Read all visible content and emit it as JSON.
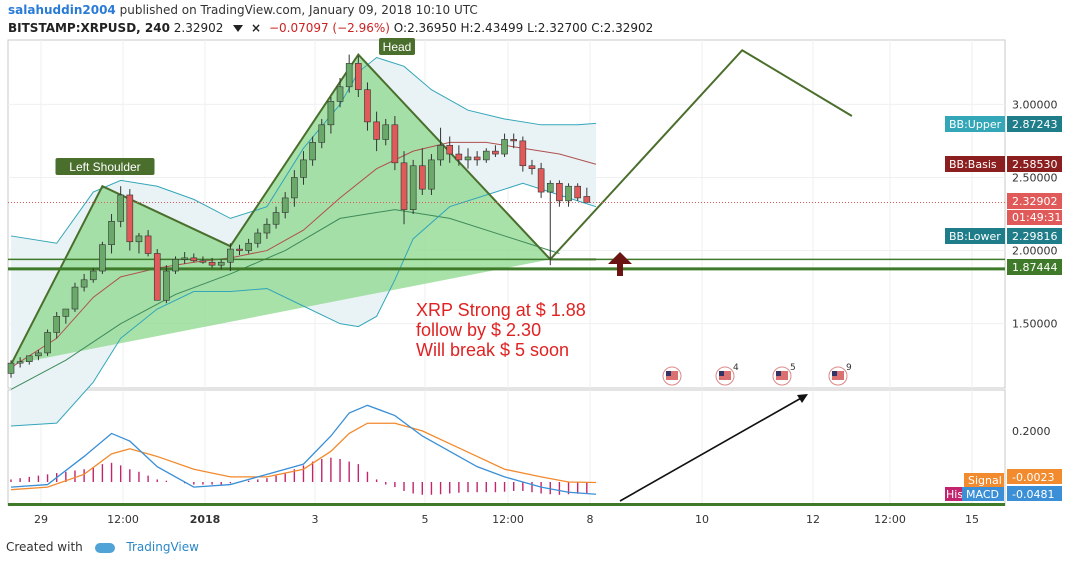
{
  "header": {
    "user": "salahuddin2004",
    "published": "published on TradingView.com, January 09, 2018 10:10 UTC",
    "symbol": "BITSTAMP:XRPUSD, 240",
    "last": "2.32902",
    "change": "−0.07097 (−2.96%)",
    "open_label": "O:",
    "open": "2.36950",
    "high_label": "H:",
    "high": "2.43499",
    "low_label": "L:",
    "low": "2.32700",
    "close_label": "C:",
    "close": "2.32902"
  },
  "footer": {
    "created_with": "Created with",
    "brand": "TradingView"
  },
  "colors": {
    "up": "#6aa96a",
    "down": "#e05a5a",
    "pattern_fill": "#8cd88c",
    "pattern_line": "#4a6e2c",
    "bb_fill": "#e9f3f5",
    "bb_band": "#33a6b8",
    "bb_basis": "#b05050",
    "ma": "#3e8a5a",
    "macd": "#3a8fd6",
    "signal": "#f28a2e",
    "hist": "#c2246e",
    "support": "#3f7a2a"
  },
  "chart_data": [
    {
      "type": "candlestick",
      "title": "BITSTAMP:XRPUSD, 240",
      "y_ticks": [
        "1.50000",
        "2.00000",
        "2.50000",
        "3.00000"
      ],
      "x_ticks": [
        "29",
        "12:00",
        "2018",
        "3",
        "5",
        "12:00",
        "8",
        "10",
        "12",
        "12:00",
        "15"
      ],
      "ylim": [
        1.06,
        3.44
      ],
      "x_range": [
        0,
        120
      ],
      "candles": [
        [
          1.16,
          1.25,
          1.13,
          1.23
        ],
        [
          1.23,
          1.27,
          1.2,
          1.24
        ],
        [
          1.24,
          1.28,
          1.22,
          1.28
        ],
        [
          1.28,
          1.32,
          1.25,
          1.3
        ],
        [
          1.3,
          1.46,
          1.28,
          1.44
        ],
        [
          1.44,
          1.58,
          1.4,
          1.55
        ],
        [
          1.55,
          1.6,
          1.5,
          1.6
        ],
        [
          1.6,
          1.78,
          1.58,
          1.75
        ],
        [
          1.75,
          1.84,
          1.72,
          1.8
        ],
        [
          1.8,
          1.88,
          1.78,
          1.86
        ],
        [
          1.86,
          2.06,
          1.84,
          2.04
        ],
        [
          2.04,
          2.25,
          1.98,
          2.2
        ],
        [
          2.2,
          2.44,
          2.16,
          2.38
        ],
        [
          2.38,
          2.42,
          2.0,
          2.06
        ],
        [
          2.06,
          2.12,
          1.98,
          2.1
        ],
        [
          2.1,
          2.14,
          1.96,
          1.98
        ],
        [
          1.98,
          2.01,
          1.66,
          1.66
        ],
        [
          1.66,
          1.9,
          1.64,
          1.86
        ],
        [
          1.86,
          1.96,
          1.84,
          1.94
        ],
        [
          1.94,
          1.99,
          1.91,
          1.95
        ],
        [
          1.95,
          1.98,
          1.92,
          1.93
        ],
        [
          1.93,
          1.96,
          1.91,
          1.92
        ],
        [
          1.92,
          1.95,
          1.88,
          1.9
        ],
        [
          1.9,
          1.94,
          1.87,
          1.92
        ],
        [
          1.92,
          2.05,
          1.86,
          2.01
        ],
        [
          2.01,
          2.04,
          1.97,
          2.0
        ],
        [
          2.0,
          2.08,
          1.98,
          2.05
        ],
        [
          2.05,
          2.15,
          2.02,
          2.12
        ],
        [
          2.12,
          2.22,
          2.08,
          2.18
        ],
        [
          2.18,
          2.3,
          2.15,
          2.26
        ],
        [
          2.26,
          2.4,
          2.22,
          2.36
        ],
        [
          2.36,
          2.55,
          2.3,
          2.5
        ],
        [
          2.5,
          2.68,
          2.45,
          2.62
        ],
        [
          2.62,
          2.78,
          2.58,
          2.74
        ],
        [
          2.74,
          2.9,
          2.7,
          2.86
        ],
        [
          2.86,
          3.05,
          2.8,
          3.02
        ],
        [
          3.02,
          3.18,
          2.98,
          3.12
        ],
        [
          3.12,
          3.34,
          3.08,
          3.28
        ],
        [
          3.28,
          3.33,
          3.05,
          3.1
        ],
        [
          3.1,
          3.15,
          2.82,
          2.88
        ],
        [
          2.88,
          2.95,
          2.68,
          2.76
        ],
        [
          2.76,
          2.9,
          2.72,
          2.86
        ],
        [
          2.86,
          2.92,
          2.55,
          2.6
        ],
        [
          2.6,
          2.68,
          2.18,
          2.28
        ],
        [
          2.28,
          2.62,
          2.25,
          2.58
        ],
        [
          2.58,
          2.7,
          2.38,
          2.42
        ],
        [
          2.42,
          2.66,
          2.38,
          2.62
        ],
        [
          2.62,
          2.84,
          2.58,
          2.72
        ],
        [
          2.72,
          2.78,
          2.6,
          2.66
        ],
        [
          2.66,
          2.72,
          2.58,
          2.62
        ],
        [
          2.62,
          2.7,
          2.56,
          2.64
        ],
        [
          2.64,
          2.68,
          2.58,
          2.62
        ],
        [
          2.62,
          2.7,
          2.6,
          2.68
        ],
        [
          2.68,
          2.72,
          2.64,
          2.66
        ],
        [
          2.66,
          2.8,
          2.64,
          2.76
        ],
        [
          2.76,
          2.8,
          2.7,
          2.75
        ],
        [
          2.75,
          2.78,
          2.54,
          2.58
        ],
        [
          2.58,
          2.62,
          2.52,
          2.56
        ],
        [
          2.56,
          2.6,
          2.36,
          2.4
        ],
        [
          2.4,
          2.48,
          1.9,
          2.46
        ],
        [
          2.46,
          2.48,
          2.3,
          2.34
        ],
        [
          2.34,
          2.46,
          2.3,
          2.44
        ],
        [
          2.44,
          2.46,
          2.34,
          2.36
        ],
        [
          2.37,
          2.43,
          2.33,
          2.33
        ]
      ],
      "bb_upper": [
        [
          0,
          2.1
        ],
        [
          5,
          2.05
        ],
        [
          9,
          2.4
        ],
        [
          12,
          2.48
        ],
        [
          16,
          2.44
        ],
        [
          20,
          2.35
        ],
        [
          24,
          2.22
        ],
        [
          28,
          2.3
        ],
        [
          32,
          2.7
        ],
        [
          36,
          3.0
        ],
        [
          38,
          3.22
        ],
        [
          40,
          3.32
        ],
        [
          43,
          3.26
        ],
        [
          46,
          3.1
        ],
        [
          50,
          2.96
        ],
        [
          54,
          2.9
        ],
        [
          58,
          2.86
        ],
        [
          62,
          2.86
        ],
        [
          64,
          2.87
        ]
      ],
      "bb_basis": [
        [
          0,
          1.2
        ],
        [
          5,
          1.4
        ],
        [
          9,
          1.68
        ],
        [
          12,
          1.82
        ],
        [
          16,
          1.88
        ],
        [
          20,
          1.92
        ],
        [
          24,
          1.95
        ],
        [
          28,
          2.0
        ],
        [
          32,
          2.14
        ],
        [
          36,
          2.36
        ],
        [
          40,
          2.56
        ],
        [
          44,
          2.68
        ],
        [
          48,
          2.74
        ],
        [
          52,
          2.74
        ],
        [
          56,
          2.7
        ],
        [
          60,
          2.66
        ],
        [
          64,
          2.59
        ]
      ],
      "bb_lower": [
        [
          0,
          0.8
        ],
        [
          5,
          0.82
        ],
        [
          9,
          1.1
        ],
        [
          12,
          1.4
        ],
        [
          16,
          1.6
        ],
        [
          20,
          1.72
        ],
        [
          24,
          1.72
        ],
        [
          28,
          1.74
        ],
        [
          32,
          1.62
        ],
        [
          36,
          1.5
        ],
        [
          38,
          1.48
        ],
        [
          40,
          1.55
        ],
        [
          42,
          1.8
        ],
        [
          44,
          2.08
        ],
        [
          48,
          2.3
        ],
        [
          52,
          2.38
        ],
        [
          56,
          2.46
        ],
        [
          60,
          2.38
        ],
        [
          64,
          2.3
        ]
      ],
      "ma_long": [
        [
          0,
          1.05
        ],
        [
          6,
          1.25
        ],
        [
          12,
          1.5
        ],
        [
          18,
          1.7
        ],
        [
          24,
          1.84
        ],
        [
          30,
          2.0
        ],
        [
          36,
          2.22
        ],
        [
          42,
          2.28
        ],
        [
          48,
          2.22
        ],
        [
          54,
          2.1
        ],
        [
          60,
          1.98
        ]
      ],
      "pattern": {
        "left_shoulder": [
          [
            0,
            1.22
          ],
          [
            10,
            2.44
          ],
          [
            24,
            2.03
          ],
          [
            38,
            3.34
          ],
          [
            59,
            1.94
          ],
          [
            64,
            1.94
          ]
        ],
        "labels": [
          "Left Shoulder",
          "Head"
        ]
      },
      "projection": [
        [
          59,
          1.94
        ],
        [
          80,
          3.37
        ],
        [
          92,
          2.92
        ]
      ],
      "support_levels": [
        1.94,
        1.87444
      ],
      "price_labels": [
        {
          "name": "BB:Upper",
          "value": "2.87243"
        },
        {
          "name": "BB:Basis",
          "value": "2.58530"
        },
        {
          "name": "",
          "value": "2.32902"
        },
        {
          "name": "BB:Lower",
          "value": "2.29816"
        },
        {
          "name": "",
          "value": "1.87444"
        }
      ],
      "countdown": "01:49:31",
      "annotation": [
        "XRP Strong at  $ 1.88",
        "follow by $ 2.30",
        "Will break $ 5 soon"
      ],
      "event_markers": [
        "",
        "4",
        "5",
        "9"
      ]
    },
    {
      "type": "line",
      "title": "MACD",
      "y_ticks": [
        "0.2000"
      ],
      "ylim": [
        -0.09,
        0.36
      ],
      "macd": [
        [
          0,
          -0.02
        ],
        [
          4,
          -0.01
        ],
        [
          8,
          0.1
        ],
        [
          11,
          0.19
        ],
        [
          13,
          0.16
        ],
        [
          16,
          0.06
        ],
        [
          20,
          -0.02
        ],
        [
          24,
          -0.01
        ],
        [
          28,
          0.03
        ],
        [
          32,
          0.07
        ],
        [
          35,
          0.18
        ],
        [
          37,
          0.27
        ],
        [
          39,
          0.3
        ],
        [
          42,
          0.26
        ],
        [
          45,
          0.18
        ],
        [
          48,
          0.12
        ],
        [
          51,
          0.06
        ],
        [
          54,
          0.02
        ],
        [
          58,
          -0.02
        ],
        [
          61,
          -0.04
        ],
        [
          64,
          -0.048
        ]
      ],
      "signal": [
        [
          0,
          -0.03
        ],
        [
          4,
          -0.02
        ],
        [
          8,
          0.03
        ],
        [
          11,
          0.11
        ],
        [
          13,
          0.13
        ],
        [
          16,
          0.1
        ],
        [
          20,
          0.05
        ],
        [
          24,
          0.02
        ],
        [
          28,
          0.02
        ],
        [
          32,
          0.05
        ],
        [
          35,
          0.12
        ],
        [
          37,
          0.19
        ],
        [
          39,
          0.23
        ],
        [
          42,
          0.23
        ],
        [
          45,
          0.2
        ],
        [
          48,
          0.15
        ],
        [
          51,
          0.1
        ],
        [
          54,
          0.05
        ],
        [
          58,
          0.02
        ],
        [
          61,
          0.0
        ],
        [
          64,
          -0.002
        ]
      ],
      "histogram": [
        0.01,
        0.015,
        0.02,
        0.025,
        0.03,
        0.035,
        0.04,
        0.045,
        0.05,
        0.055,
        0.07,
        0.075,
        0.065,
        0.05,
        0.04,
        0.025,
        0.01,
        0.005,
        0.0,
        -0.005,
        -0.01,
        -0.01,
        -0.01,
        -0.01,
        -0.005,
        0.0,
        0.005,
        0.01,
        0.015,
        0.025,
        0.035,
        0.05,
        0.065,
        0.08,
        0.09,
        0.095,
        0.09,
        0.08,
        0.07,
        0.04,
        0.01,
        -0.01,
        -0.02,
        -0.035,
        -0.045,
        -0.05,
        -0.05,
        -0.048,
        -0.045,
        -0.042,
        -0.04,
        -0.04,
        -0.04,
        -0.04,
        -0.038,
        -0.035,
        -0.035,
        -0.04,
        -0.045,
        -0.048,
        -0.05,
        -0.048,
        -0.046,
        -0.046
      ],
      "labels": [
        {
          "name": "Signal",
          "value": "-0.0023"
        },
        {
          "name": "MACD",
          "value": "-0.0481"
        },
        {
          "name": "His",
          "value": ""
        }
      ]
    }
  ]
}
